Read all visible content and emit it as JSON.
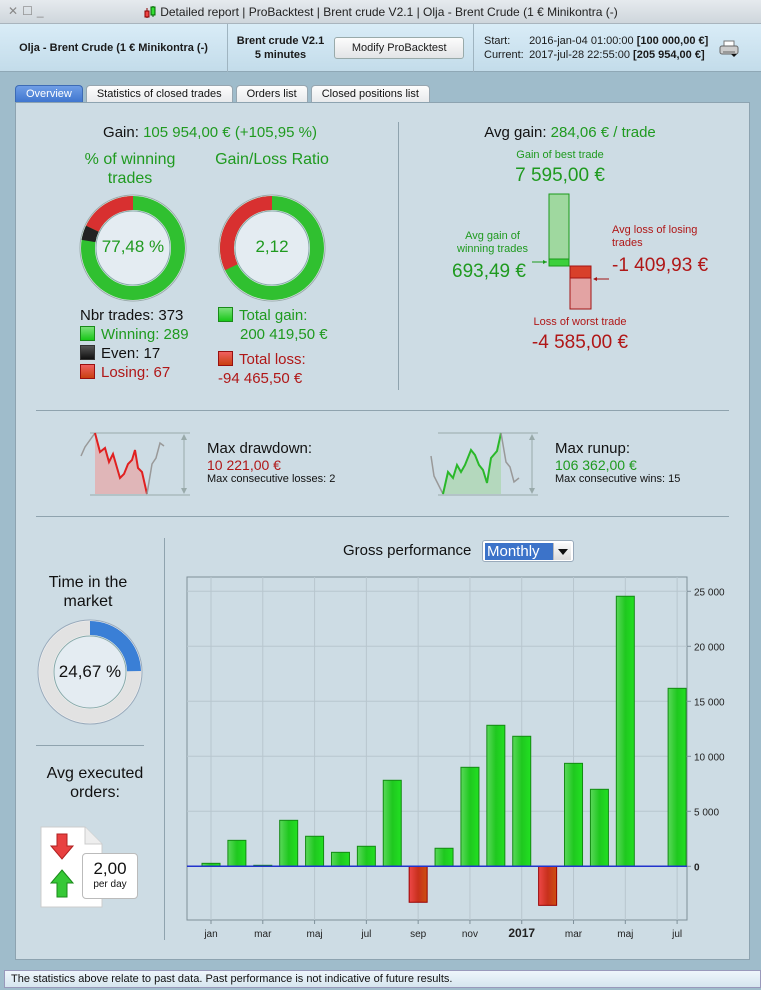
{
  "window": {
    "title": "Detailed report | ProBacktest | Brent crude V2.1 | Olja - Brent Crude (1 € Minikontra (-)",
    "controls": [
      "close",
      "maximize",
      "minimize"
    ]
  },
  "header": {
    "instrument": "Olja - Brent Crude (1 € Minikontra (-)",
    "strategy_name": "Brent crude V2.1",
    "timeframe": "5 minutes",
    "modify_button": "Modify ProBacktest",
    "start_label": "Start:",
    "start_date": "2016-jan-04 01:00:00",
    "start_value": "[100 000,00 €]",
    "current_label": "Current:",
    "current_date": "2017-jul-28 22:55:00",
    "current_value": "[205 954,00 €]",
    "print_icon": "printer-icon"
  },
  "tabs": [
    {
      "label": "Overview",
      "active": true
    },
    {
      "label": "Statistics of closed trades",
      "active": false
    },
    {
      "label": "Orders list",
      "active": false
    },
    {
      "label": "Closed positions list",
      "active": false
    }
  ],
  "overview": {
    "gain_label": "Gain:",
    "gain_value": "105 954,00 € (+105,95 %)",
    "winning_pct_title": "% of winning trades",
    "winning_pct_value": "77,48 %",
    "winning_ring": {
      "winning": 289,
      "even": 17,
      "losing": 67
    },
    "ratio_title": "Gain/Loss Ratio",
    "ratio_value": "2,12",
    "ratio_ring": {
      "gain": 200419.5,
      "loss": 94465.5
    },
    "nbr_trades": "Nbr trades: 373",
    "winning": "Winning: 289",
    "even": "Even: 17",
    "losing": "Losing: 67",
    "total_gain_label": "Total gain:",
    "total_gain_value": "200 419,50 €",
    "total_loss_label": "Total loss:",
    "total_loss_value": "-94 465,50 €",
    "avg_gain_label": "Avg gain:",
    "avg_gain_value": "284,06 € / trade",
    "best_trade_label": "Gain of best trade",
    "best_trade_value": "7 595,00 €",
    "avg_win_label": "Avg gain of winning trades",
    "avg_win_value": "693,49 €",
    "avg_loss_label": "Avg loss of losing trades",
    "avg_loss_value": "-1 409,93 €",
    "worst_trade_label": "Loss of worst trade",
    "worst_trade_value": "-4 585,00 €",
    "drawdown_label": "Max drawdown:",
    "drawdown_value": "10 221,00 €",
    "max_consec_losses": "Max consecutive losses: 2",
    "runup_label": "Max runup:",
    "runup_value": "106 362,00 €",
    "max_consec_wins": "Max consecutive wins: 15",
    "time_in_market_title": "Time in the market",
    "time_in_market_value": "24,67 %",
    "time_in_market_fraction": 0.2467,
    "avg_orders_title": "Avg executed orders:",
    "avg_orders_value": "2,00",
    "avg_orders_unit": "per day"
  },
  "performance": {
    "title": "Gross performance",
    "period_selected": "Monthly"
  },
  "chart_data": {
    "type": "bar",
    "title": "Gross performance",
    "xlabel": "",
    "ylabel": "",
    "ylim": [
      -5000,
      26000
    ],
    "yticks": [
      0,
      5000,
      10000,
      15000,
      20000,
      25000
    ],
    "ytick_labels": [
      "0",
      "5 000",
      "10 000",
      "15 000",
      "20 000",
      "25 000"
    ],
    "x_tick_labels": [
      {
        "index": 0,
        "label": "jan",
        "bold": false
      },
      {
        "index": 2,
        "label": "mar",
        "bold": false
      },
      {
        "index": 4,
        "label": "maj",
        "bold": false
      },
      {
        "index": 6,
        "label": "jul",
        "bold": false
      },
      {
        "index": 8,
        "label": "sep",
        "bold": false
      },
      {
        "index": 10,
        "label": "nov",
        "bold": false
      },
      {
        "index": 12,
        "label": "2017",
        "bold": true
      },
      {
        "index": 14,
        "label": "mar",
        "bold": false
      },
      {
        "index": 16,
        "label": "maj",
        "bold": false
      },
      {
        "index": 18,
        "label": "jul",
        "bold": false
      }
    ],
    "categories": [
      "2016-jan",
      "2016-feb",
      "2016-mar",
      "2016-apr",
      "2016-maj",
      "2016-jun",
      "2016-jul",
      "2016-aug",
      "2016-sep",
      "2016-okt",
      "2016-nov",
      "2016-dec",
      "2017-jan",
      "2017-feb",
      "2017-mar",
      "2017-apr",
      "2017-maj",
      "2017-jun",
      "2017-jul"
    ],
    "values": [
      270,
      2360,
      90,
      4180,
      2730,
      1270,
      1820,
      7820,
      -3270,
      1640,
      9000,
      12820,
      11820,
      -3550,
      9360,
      7000,
      24550,
      0,
      16180
    ],
    "grid": true,
    "colors": {
      "positive": "#1fcc1f",
      "negative": "#d0401c",
      "zero_line": "#2233cc"
    }
  },
  "status_bar": "The statistics above relate to past data. Past performance is not indicative of future results."
}
